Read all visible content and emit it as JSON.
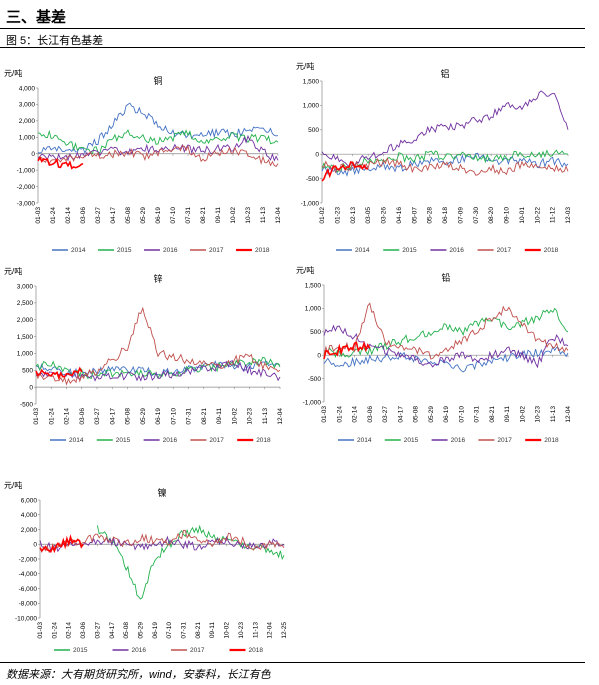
{
  "page": {
    "section_title": "三、基差",
    "figure_caption": "图 5：长江有色基差",
    "source_note": "数据来源：大有期货研究所，wind，安泰科，长江有色"
  },
  "colors": {
    "2014": "#4472c4",
    "2015": "#23b14d",
    "2016": "#7030a0",
    "2017": "#c0504d",
    "2018": "#ff0000"
  },
  "chart_data": [
    {
      "id": "copper",
      "type": "line",
      "title": "铜",
      "unit": "元/吨",
      "ylim": [
        -3000,
        4000
      ],
      "yticks": [
        "4,000",
        "3,000",
        "2,000",
        "1,000",
        "0",
        "-1,000",
        "-2,000",
        "-3,000"
      ],
      "xticks": [
        "01-03",
        "01-24",
        "02-14",
        "03-06",
        "03-27",
        "04-17",
        "05-08",
        "05-29",
        "06-19",
        "07-10",
        "07-31",
        "08-21",
        "09-11",
        "10-02",
        "10-23",
        "11-13",
        "12-04"
      ],
      "legend": [
        "2014",
        "2015",
        "2016",
        "2017",
        "2018"
      ],
      "series": [
        {
          "name": "2014",
          "values": [
            100,
            300,
            100,
            200,
            800,
            1800,
            2900,
            2500,
            1700,
            1300,
            1200,
            1100,
            1300,
            1200,
            1400,
            1500,
            1100
          ]
        },
        {
          "name": "2015",
          "values": [
            1300,
            1100,
            600,
            300,
            200,
            900,
            1200,
            1000,
            700,
            1000,
            1300,
            700,
            900,
            1100,
            900,
            1000,
            700
          ]
        },
        {
          "name": "2016",
          "values": [
            -200,
            -300,
            -200,
            0,
            100,
            200,
            100,
            300,
            200,
            400,
            300,
            200,
            300,
            400,
            1000,
            100,
            -400
          ]
        },
        {
          "name": "2017",
          "values": [
            -300,
            -400,
            -300,
            -200,
            -100,
            0,
            100,
            -200,
            0,
            200,
            300,
            -300,
            100,
            200,
            0,
            -400,
            -600
          ]
        },
        {
          "name": "2018",
          "values": [
            -400,
            -500,
            -700,
            -600,
            null,
            null,
            null,
            null,
            null,
            null,
            null,
            null,
            null,
            null,
            null,
            null,
            null
          ]
        }
      ]
    },
    {
      "id": "aluminum",
      "type": "line",
      "title": "铝",
      "unit": "元/吨",
      "ylim": [
        -1000,
        1500
      ],
      "yticks": [
        "1,500",
        "1,000",
        "500",
        "0",
        "-500",
        "-1,000"
      ],
      "xticks": [
        "01-02",
        "01-23",
        "02-13",
        "03-05",
        "03-26",
        "04-16",
        "05-07",
        "05-28",
        "06-18",
        "07-09",
        "07-30",
        "08-20",
        "09-10",
        "10-01",
        "10-22",
        "11-12",
        "12-03"
      ],
      "legend": [
        "2014",
        "2015",
        "2016",
        "2017",
        "2018"
      ],
      "series": [
        {
          "name": "2014",
          "values": [
            -300,
            -400,
            -350,
            -300,
            -250,
            -300,
            -200,
            -150,
            -200,
            -100,
            -50,
            -100,
            -150,
            -100,
            -200,
            -150,
            -200
          ]
        },
        {
          "name": "2015",
          "values": [
            -250,
            -300,
            -200,
            -150,
            -100,
            -50,
            -100,
            0,
            -50,
            0,
            -50,
            -100,
            -50,
            0,
            -50,
            50,
            0
          ]
        },
        {
          "name": "2016",
          "values": [
            100,
            -100,
            -200,
            -50,
            50,
            200,
            300,
            500,
            600,
            550,
            700,
            800,
            1000,
            900,
            1200,
            1300,
            500
          ]
        },
        {
          "name": "2017",
          "values": [
            -200,
            -300,
            -250,
            -200,
            -150,
            -200,
            -300,
            -250,
            -200,
            -300,
            -400,
            -300,
            -350,
            -200,
            -300,
            -250,
            -350
          ]
        },
        {
          "name": "2018",
          "values": [
            -500,
            -250,
            -200,
            -300,
            null,
            null,
            null,
            null,
            null,
            null,
            null,
            null,
            null,
            null,
            null,
            null,
            null
          ]
        }
      ]
    },
    {
      "id": "zinc",
      "type": "line",
      "title": "锌",
      "unit": "元/吨",
      "ylim": [
        -500,
        3000
      ],
      "yticks": [
        "3,000",
        "2,500",
        "2,000",
        "1,500",
        "1,000",
        "500",
        "0",
        "-500"
      ],
      "xticks": [
        "01-03",
        "01-24",
        "02-14",
        "03-06",
        "03-27",
        "04-17",
        "05-08",
        "05-29",
        "06-19",
        "07-10",
        "07-31",
        "08-21",
        "09-11",
        "10-02",
        "10-23",
        "11-13",
        "12-04"
      ],
      "legend": [
        "2014",
        "2015",
        "2016",
        "2017",
        "2018"
      ],
      "series": [
        {
          "name": "2014",
          "values": [
            600,
            500,
            450,
            400,
            450,
            500,
            550,
            500,
            450,
            500,
            550,
            600,
            700,
            650,
            600,
            700,
            650
          ]
        },
        {
          "name": "2015",
          "values": [
            600,
            700,
            500,
            400,
            350,
            400,
            450,
            400,
            350,
            400,
            500,
            550,
            600,
            700,
            750,
            800,
            600
          ]
        },
        {
          "name": "2016",
          "values": [
            300,
            350,
            400,
            300,
            250,
            300,
            350,
            300,
            350,
            400,
            500,
            550,
            600,
            700,
            500,
            400,
            300
          ]
        },
        {
          "name": "2017",
          "values": [
            400,
            300,
            200,
            300,
            500,
            800,
            1200,
            2400,
            1000,
            900,
            800,
            700,
            600,
            800,
            900,
            600,
            500
          ]
        },
        {
          "name": "2018",
          "values": [
            450,
            400,
            350,
            450,
            null,
            null,
            null,
            null,
            null,
            null,
            null,
            null,
            null,
            null,
            null,
            null,
            null
          ]
        }
      ]
    },
    {
      "id": "lead",
      "type": "line",
      "title": "铅",
      "unit": "元/吨",
      "ylim": [
        -1000,
        1500
      ],
      "yticks": [
        "1,500",
        "1,000",
        "500",
        "0",
        "-500",
        "-1,000"
      ],
      "xticks": [
        "01-03",
        "01-24",
        "02-14",
        "03-06",
        "03-27",
        "04-17",
        "05-08",
        "05-29",
        "06-19",
        "07-10",
        "07-31",
        "08-21",
        "09-11",
        "10-02",
        "10-23",
        "11-13",
        "12-04"
      ],
      "legend": [
        "2014",
        "2015",
        "2016",
        "2017",
        "2018"
      ],
      "series": [
        {
          "name": "2014",
          "values": [
            -100,
            -200,
            -150,
            -100,
            -50,
            0,
            -100,
            -150,
            -200,
            -300,
            -200,
            -100,
            -50,
            0,
            50,
            100,
            50
          ]
        },
        {
          "name": "2015",
          "values": [
            100,
            0,
            50,
            100,
            200,
            300,
            400,
            500,
            600,
            500,
            700,
            800,
            600,
            700,
            800,
            1000,
            500
          ]
        },
        {
          "name": "2016",
          "values": [
            500,
            600,
            400,
            200,
            100,
            0,
            -100,
            -200,
            -100,
            0,
            -100,
            0,
            100,
            0,
            -200,
            400,
            200
          ]
        },
        {
          "name": "2017",
          "values": [
            100,
            200,
            150,
            1100,
            300,
            200,
            100,
            0,
            100,
            300,
            500,
            800,
            1000,
            700,
            300,
            200,
            100
          ]
        },
        {
          "name": "2018",
          "values": [
            0,
            100,
            200,
            150,
            null,
            null,
            null,
            null,
            null,
            null,
            null,
            null,
            null,
            null,
            null,
            null,
            null
          ]
        }
      ]
    },
    {
      "id": "nickel",
      "type": "line",
      "title": "镍",
      "unit": "元/吨",
      "ylim": [
        -10000,
        6000
      ],
      "yticks": [
        "6,000",
        "4,000",
        "2,000",
        "0",
        "-2,000",
        "-4,000",
        "-6,000",
        "-8,000",
        "-10,000"
      ],
      "xticks": [
        "01-03",
        "01-24",
        "02-14",
        "03-06",
        "03-27",
        "04-17",
        "05-08",
        "05-29",
        "06-19",
        "07-10",
        "07-31",
        "08-21",
        "09-11",
        "10-02",
        "10-23",
        "11-13",
        "12-04",
        "12-25"
      ],
      "legend": [
        "2015",
        "2016",
        "2017",
        "2018"
      ],
      "series": [
        {
          "name": "2015",
          "values": [
            null,
            null,
            null,
            null,
            2000,
            500,
            -3000,
            -7500,
            -2000,
            0,
            1500,
            2000,
            1000,
            500,
            0,
            -500,
            -1000,
            -1500
          ]
        },
        {
          "name": "2016",
          "values": [
            0,
            -500,
            -300,
            0,
            500,
            300,
            0,
            -500,
            0,
            500,
            0,
            -300,
            200,
            500,
            0,
            -500,
            300,
            0
          ]
        },
        {
          "name": "2017",
          "values": [
            -1000,
            -500,
            0,
            500,
            1000,
            500,
            0,
            1000,
            500,
            0,
            1500,
            500,
            0,
            1000,
            500,
            -500,
            0,
            -500
          ]
        },
        {
          "name": "2018",
          "values": [
            -1000,
            -500,
            500,
            0,
            null,
            null,
            null,
            null,
            null,
            null,
            null,
            null,
            null,
            null,
            null,
            null,
            null,
            null
          ]
        }
      ]
    }
  ]
}
